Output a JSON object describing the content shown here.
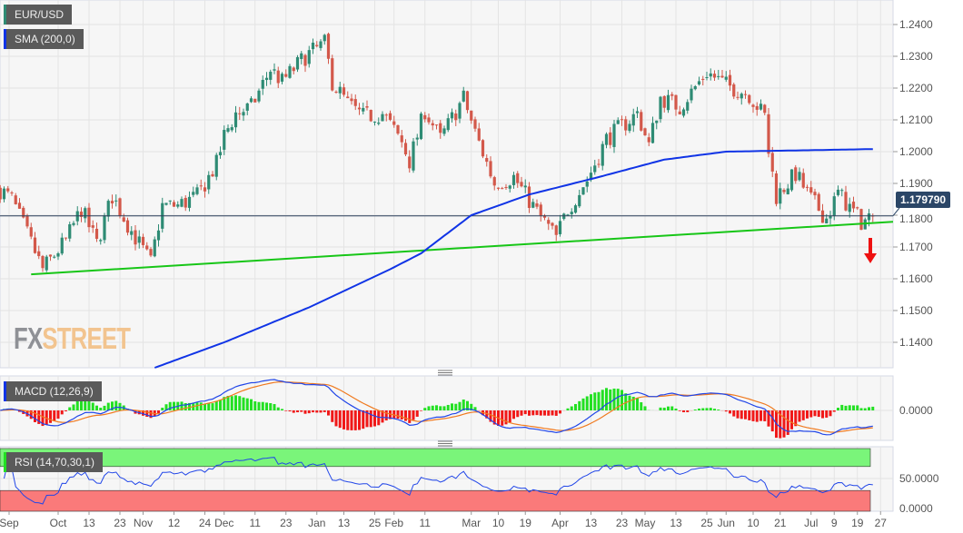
{
  "chart_data": {
    "type": "candlestick",
    "title": "EUR/USD",
    "symbol_label": "EUR/USD",
    "sma_label": "SMA (200,0)",
    "macd_label": "MACD (12,26,9)",
    "rsi_label": "RSI (14,70,30,1)",
    "current_price": "1.179790",
    "current_price_value": 1.17979,
    "ylim": [
      1.131,
      1.2455
    ],
    "y_ticks": [
      "1.2400",
      "1.2300",
      "1.2200",
      "1.2100",
      "1.2000",
      "1.1900",
      "1.1800",
      "1.1700",
      "1.1600",
      "1.1500",
      "1.1400"
    ],
    "macd_ticks": [
      "0.0000"
    ],
    "rsi_ticks": [
      "50.0000",
      "0.0000"
    ],
    "rsi_levels": {
      "overbought": 70,
      "oversold": 30
    },
    "x_ticks": [
      {
        "label": "Sep",
        "date": "2020-09-10"
      },
      {
        "label": "Oct",
        "date": "2020-10-01"
      },
      {
        "label": "13",
        "date": "2020-10-13"
      },
      {
        "label": "23",
        "date": "2020-10-23"
      },
      {
        "label": "Nov",
        "date": "2020-11-02"
      },
      {
        "label": "12",
        "date": "2020-11-12"
      },
      {
        "label": "24",
        "date": "2020-11-24"
      },
      {
        "label": "Dec",
        "date": "2020-12-01"
      },
      {
        "label": "11",
        "date": "2020-12-11"
      },
      {
        "label": "23",
        "date": "2020-12-23"
      },
      {
        "label": "Jan",
        "date": "2021-01-04"
      },
      {
        "label": "13",
        "date": "2021-01-13"
      },
      {
        "label": "25",
        "date": "2021-01-25"
      },
      {
        "label": "Feb",
        "date": "2021-02-01"
      },
      {
        "label": "11",
        "date": "2021-02-11"
      },
      {
        "label": "Mar",
        "date": "2021-03-01"
      },
      {
        "label": "10",
        "date": "2021-03-10"
      },
      {
        "label": "19",
        "date": "2021-03-19"
      },
      {
        "label": "Apr",
        "date": "2021-04-01"
      },
      {
        "label": "13",
        "date": "2021-04-13"
      },
      {
        "label": "23",
        "date": "2021-04-23"
      },
      {
        "label": "May",
        "date": "2021-05-03"
      },
      {
        "label": "13",
        "date": "2021-05-13"
      },
      {
        "label": "25",
        "date": "2021-05-25"
      },
      {
        "label": "Jun",
        "date": "2021-06-01"
      },
      {
        "label": "10",
        "date": "2021-06-10"
      },
      {
        "label": "21",
        "date": "2021-06-21"
      },
      {
        "label": "Jul",
        "date": "2021-07-01"
      },
      {
        "label": "9",
        "date": "2021-07-09"
      },
      {
        "label": "19",
        "date": "2021-07-19"
      },
      {
        "label": "27",
        "date": "2021-07-27"
      }
    ],
    "closes_approx": [
      [
        "2020-09-10",
        1.188
      ],
      [
        "2020-09-15",
        1.185
      ],
      [
        "2020-09-25",
        1.163
      ],
      [
        "2020-10-05",
        1.172
      ],
      [
        "2020-10-09",
        1.182
      ],
      [
        "2020-10-15",
        1.171
      ],
      [
        "2020-10-21",
        1.186
      ],
      [
        "2020-10-28",
        1.175
      ],
      [
        "2020-11-04",
        1.165
      ],
      [
        "2020-11-09",
        1.183
      ],
      [
        "2020-11-13",
        1.183
      ],
      [
        "2020-11-20",
        1.186
      ],
      [
        "2020-11-27",
        1.196
      ],
      [
        "2020-12-01",
        1.205
      ],
      [
        "2020-12-04",
        1.212
      ],
      [
        "2020-12-10",
        1.214
      ],
      [
        "2020-12-17",
        1.226
      ],
      [
        "2020-12-22",
        1.222
      ],
      [
        "2020-12-30",
        1.23
      ],
      [
        "2021-01-06",
        1.234
      ],
      [
        "2021-01-08",
        1.222
      ],
      [
        "2021-01-14",
        1.215
      ],
      [
        "2021-01-20",
        1.211
      ],
      [
        "2021-01-27",
        1.212
      ],
      [
        "2021-02-03",
        1.203
      ],
      [
        "2021-02-05",
        1.197
      ],
      [
        "2021-02-11",
        1.213
      ],
      [
        "2021-02-17",
        1.204
      ],
      [
        "2021-02-25",
        1.217
      ],
      [
        "2021-03-02",
        1.206
      ],
      [
        "2021-03-09",
        1.19
      ],
      [
        "2021-03-16",
        1.192
      ],
      [
        "2021-03-24",
        1.181
      ],
      [
        "2021-03-31",
        1.173
      ],
      [
        "2021-04-05",
        1.182
      ],
      [
        "2021-04-12",
        1.191
      ],
      [
        "2021-04-19",
        1.204
      ],
      [
        "2021-04-29",
        1.212
      ],
      [
        "2021-05-04",
        1.202
      ],
      [
        "2021-05-07",
        1.217
      ],
      [
        "2021-05-14",
        1.214
      ],
      [
        "2021-05-25",
        1.225
      ],
      [
        "2021-06-01",
        1.221
      ],
      [
        "2021-06-09",
        1.218
      ],
      [
        "2021-06-15",
        1.211
      ],
      [
        "2021-06-16",
        1.2
      ],
      [
        "2021-06-18",
        1.186
      ],
      [
        "2021-06-25",
        1.193
      ],
      [
        "2021-07-01",
        1.185
      ],
      [
        "2021-07-07",
        1.179
      ],
      [
        "2021-07-12",
        1.187
      ],
      [
        "2021-07-16",
        1.181
      ],
      [
        "2021-07-20",
        1.178
      ],
      [
        "2021-07-23",
        1.1798
      ]
    ],
    "sma_200": [
      [
        "2020-11-05",
        1.132
      ],
      [
        "2020-12-01",
        1.14
      ],
      [
        "2020-12-31",
        1.151
      ],
      [
        "2021-01-29",
        1.163
      ],
      [
        "2021-02-10",
        1.168
      ],
      [
        "2021-03-01",
        1.18
      ],
      [
        "2021-03-22",
        1.1865
      ],
      [
        "2021-04-15",
        1.192
      ],
      [
        "2021-05-10",
        1.1975
      ],
      [
        "2021-06-01",
        1.2
      ],
      [
        "2021-07-23",
        1.2008
      ]
    ],
    "trendline": [
      [
        "2020-09-22",
        1.1614
      ],
      [
        "2021-07-27",
        1.1777
      ]
    ],
    "colors": {
      "up": "#2e8b74",
      "down": "#d3584a",
      "sma": "#1034e6",
      "trend": "#17c617",
      "macd": "#2146e8",
      "signal": "#f07a1f",
      "hist_up": "#22e022",
      "hist_down": "#f01818",
      "rsi": "#2146e8",
      "arrow": "#ee1111"
    }
  },
  "branding": {
    "fx": "FX",
    "street": "STREET"
  }
}
